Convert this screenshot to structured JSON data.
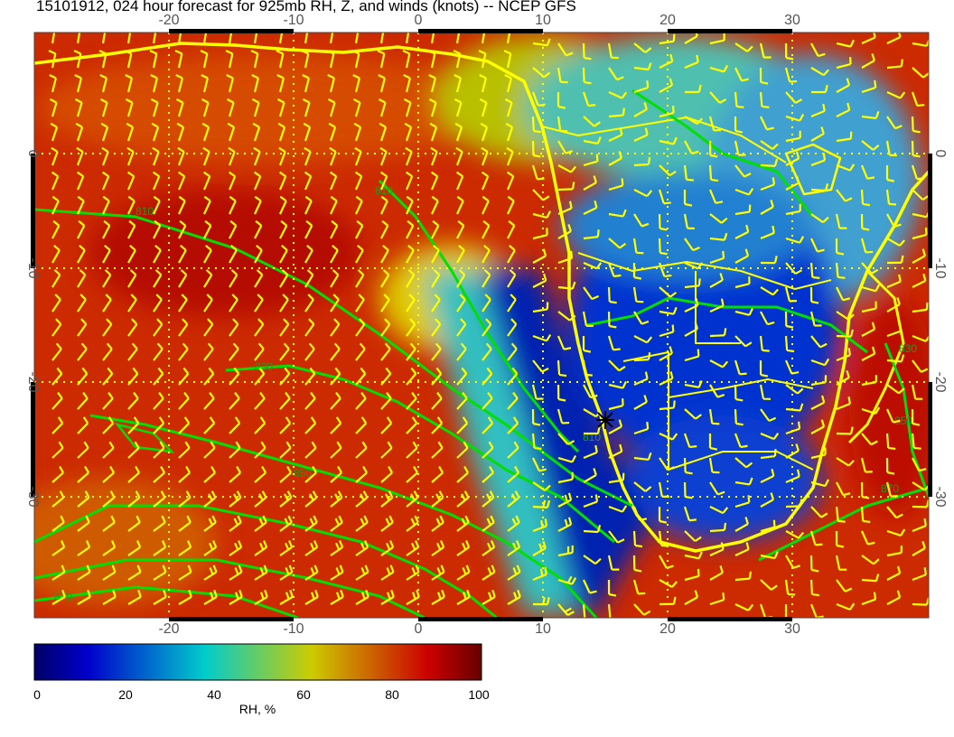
{
  "title": "15101912, 024 hour forecast for 925mb RH, Z, and winds (knots) -- NCEP GFS",
  "map": {
    "longitude_ticks": [
      "-20",
      "-10",
      "0",
      "10",
      "20",
      "30"
    ],
    "latitude_ticks": [
      "0",
      "-10",
      "-20",
      "-30"
    ],
    "longitude_range": [
      -31,
      41
    ],
    "latitude_range": [
      10,
      -40
    ],
    "contour_labels": [
      "810",
      "830",
      "850",
      "870",
      "810",
      "830",
      "850",
      "870",
      "810"
    ],
    "colors": {
      "coastline": "#ffff00",
      "contours": "#00e000",
      "wind_barbs": "#ffff00",
      "grid": "#ffff00",
      "marker": "#000000"
    },
    "marker": "asterisk",
    "layers": [
      "RH shading",
      "geopotential height contours",
      "wind barbs"
    ]
  },
  "colorbar": {
    "label": "RH, %",
    "ticks": [
      "0",
      "20",
      "40",
      "60",
      "80",
      "100"
    ],
    "range": [
      0,
      100
    ],
    "colors": [
      "#000066",
      "#0000cc",
      "#00cccc",
      "#cccc00",
      "#cc0000",
      "#660000"
    ]
  }
}
